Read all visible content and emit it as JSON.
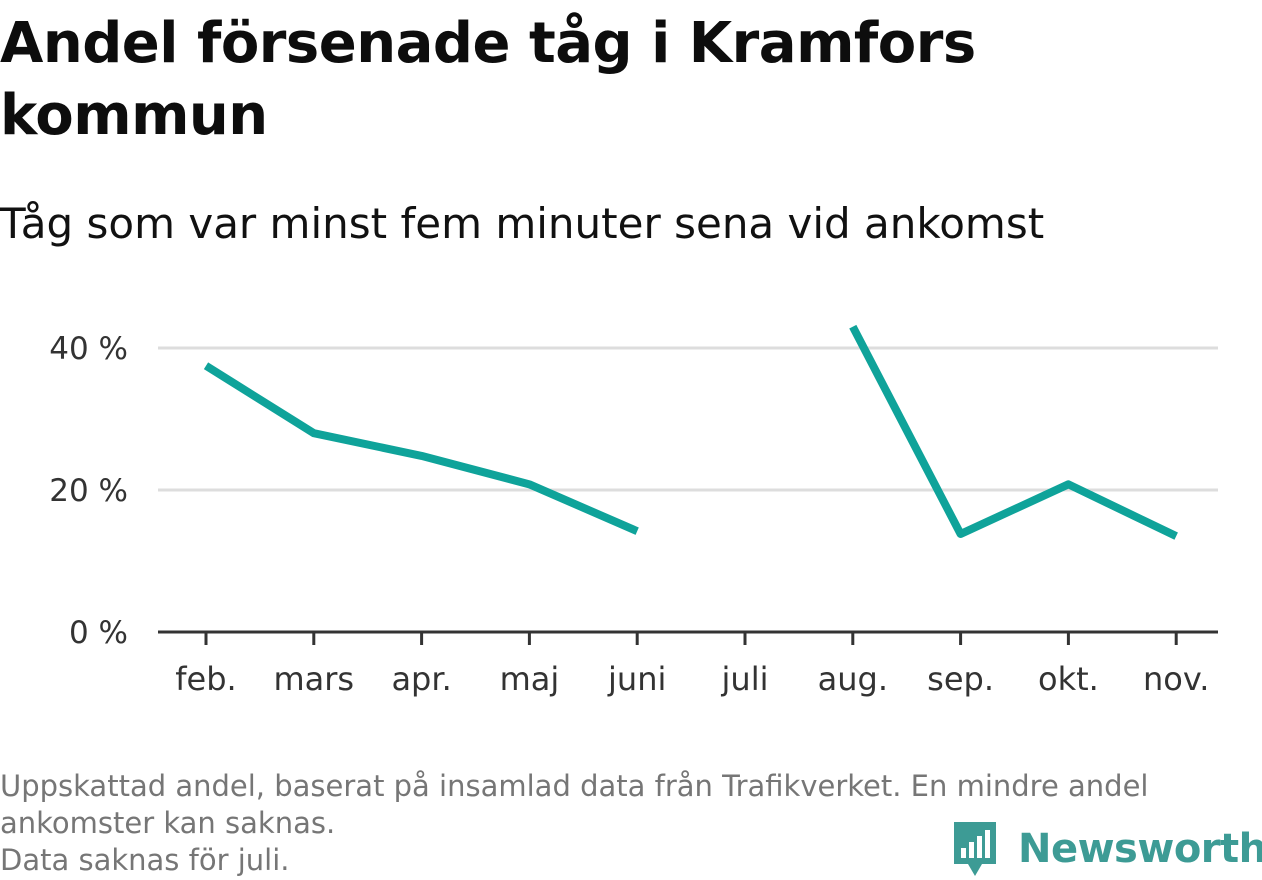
{
  "title": "Andel försenade tåg i Kramfors kommun",
  "subtitle": "Tåg som var minst fem minuter sena vid ankomst",
  "footer": {
    "note_line1": "Uppskattad andel, baserat på insamlad data från Trafikverket. En mindre andel",
    "note_line2": "ankomster kan saknas.",
    "note_line3": "Data saknas för juli."
  },
  "brand": {
    "name": "Newsworthy",
    "icon": "newsworthy-logo-icon",
    "color": "#3d9b95"
  },
  "colors": {
    "line": "#0fa39a",
    "grid": "#dddddd",
    "axis": "#333333"
  },
  "chart_data": {
    "type": "line",
    "title": "Andel försenade tåg i Kramfors kommun",
    "subtitle": "Tåg som var minst fem minuter sena vid ankomst",
    "categories": [
      "feb.",
      "mars",
      "apr.",
      "maj",
      "juni",
      "juli",
      "aug.",
      "sep.",
      "okt.",
      "nov."
    ],
    "series": [
      {
        "values": [
          37.5,
          28.0,
          24.8,
          20.8,
          14.2,
          null,
          43.0,
          13.8,
          20.8,
          13.5
        ]
      }
    ],
    "yticks": [
      0,
      20,
      40
    ],
    "ytick_labels": [
      "0 %",
      "20 %",
      "40 %"
    ],
    "ylim": [
      0,
      45
    ],
    "grid": true,
    "legend": "none"
  }
}
